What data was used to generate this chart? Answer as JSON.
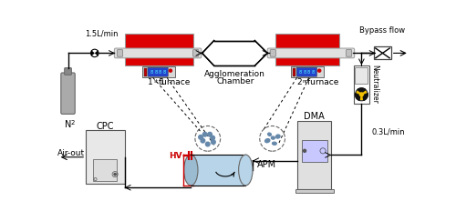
{
  "bg_color": "#ffffff",
  "flow_label_top": "1.5L/min",
  "flow_label_bottom": "0.3L/min",
  "bypass_label": "Bypass flow",
  "neutralizer_label": "Neutralizer",
  "furnace1_label": "1",
  "furnace1_sup": "st",
  "furnace1_rest": " furnace",
  "furnace2_label": "2",
  "furnace2_sup": "nd",
  "furnace2_rest": " furnace",
  "chamber_label1": "Agglomeration",
  "chamber_label2": "Chamber",
  "cpc_label": "CPC",
  "apm_label": "APM",
  "dma_label": "DMA",
  "hv_label": "HV",
  "airout_label": "Air-out",
  "n2_label": "N",
  "n2_sub": "2",
  "red_color": "#cc0000",
  "furnace_red": "#dd0000",
  "blue_apm": "#b8d4e8",
  "yellow_rad": "#f0c000"
}
